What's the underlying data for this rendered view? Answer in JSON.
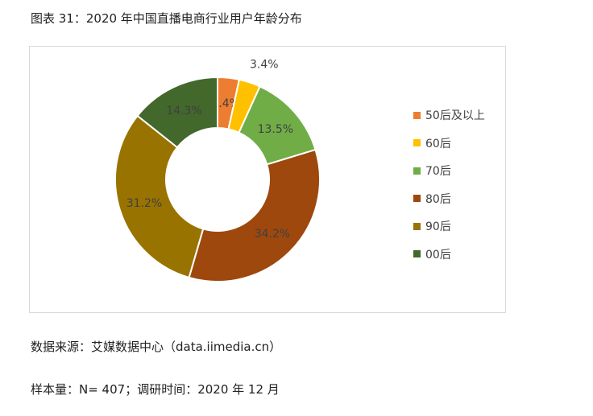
{
  "figure": {
    "title": "图表 31：2020 年中国直播电商行业用户年龄分布",
    "source": "数据来源：艾媒数据中心（data.iimedia.cn）",
    "sample": "样本量：N= 407；调研时间：2020 年 12 月"
  },
  "chart_data": {
    "type": "pie",
    "variant": "donut",
    "legend_position": "right",
    "categories": [
      "50后及以上",
      "60后",
      "70后",
      "80后",
      "90后",
      "00后"
    ],
    "values": [
      3.4,
      3.4,
      13.5,
      34.2,
      31.2,
      14.3
    ],
    "labels": [
      "3.4%",
      "3.4%",
      "13.5%",
      "34.2%",
      "31.2%",
      "14.3%"
    ],
    "colors": [
      "#ED7D31",
      "#FFC000",
      "#70AD47",
      "#9E480E",
      "#997300",
      "#43682B"
    ]
  }
}
